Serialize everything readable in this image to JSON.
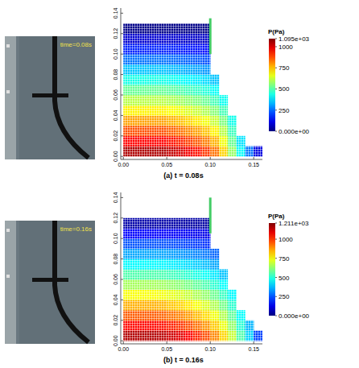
{
  "chart_data": [
    {
      "type": "heatmap",
      "title": "(a) t = 0.08s",
      "annotation": "time=0.08s",
      "xlim": [
        -0.003,
        0.16
      ],
      "ylim": [
        -0.003,
        0.145
      ],
      "xticks": [
        {
          "value": 0,
          "label": "0.00"
        },
        0.05,
        {
          "value": 0.1,
          "label": "0.10"
        },
        0.15
      ],
      "yticks": [
        {
          "value": 0,
          "label": "0.00"
        },
        0.02,
        0.04,
        0.06,
        0.08,
        {
          "value": 0.1,
          "label": "0.10"
        },
        0.12,
        0.14
      ],
      "colorbar": {
        "title": "P(Pa)",
        "range": [
          0,
          1095
        ],
        "ticks": [
          {
            "value": 1095,
            "label": "1.095e+03"
          },
          1000,
          750,
          500,
          250,
          {
            "value": 0,
            "label": "0.000e+00"
          }
        ]
      },
      "gate": {
        "x": 0.1,
        "bottom": 0.1,
        "top": 0.135
      },
      "x": [
        0.005,
        0.015,
        0.025,
        0.035,
        0.045,
        0.055,
        0.065,
        0.075,
        0.085,
        0.095,
        0.105,
        0.115,
        0.125,
        0.135,
        0.145,
        0.155
      ],
      "y": [
        0.005,
        0.015,
        0.025,
        0.035,
        0.045,
        0.055,
        0.065,
        0.075,
        0.085,
        0.095,
        0.105,
        0.115,
        0.125
      ],
      "cells": [
        [
          1044,
          1044,
          1044,
          1044,
          1044,
          1023,
          1002,
          971,
          940,
          898,
          835,
          731,
          574,
          418,
          261,
          104
        ],
        [
          957,
          957,
          957,
          957,
          957,
          938,
          919,
          890,
          861,
          823,
          766,
          670,
          526,
          383,
          null,
          null
        ],
        [
          870,
          870,
          870,
          870,
          870,
          853,
          835,
          809,
          783,
          748,
          696,
          609,
          479,
          null,
          null,
          null
        ],
        [
          783,
          783,
          783,
          783,
          783,
          767,
          752,
          728,
          705,
          673,
          626,
          548,
          431,
          null,
          null,
          null
        ],
        [
          696,
          696,
          696,
          696,
          696,
          682,
          668,
          647,
          626,
          599,
          557,
          487,
          null,
          null,
          null,
          null
        ],
        [
          609,
          609,
          609,
          609,
          609,
          597,
          585,
          566,
          548,
          524,
          487,
          426,
          null,
          null,
          null,
          null
        ],
        [
          522,
          522,
          522,
          522,
          522,
          512,
          501,
          485,
          470,
          449,
          418,
          null,
          null,
          null,
          null,
          null
        ],
        [
          435,
          435,
          435,
          435,
          435,
          426,
          418,
          405,
          392,
          374,
          348,
          null,
          null,
          null,
          null,
          null
        ],
        [
          348,
          348,
          348,
          348,
          348,
          341,
          334,
          324,
          313,
          299,
          null,
          null,
          null,
          null,
          null,
          null
        ],
        [
          261,
          261,
          261,
          261,
          261,
          256,
          251,
          243,
          235,
          224,
          null,
          null,
          null,
          null,
          null,
          null
        ],
        [
          174,
          174,
          174,
          174,
          174,
          171,
          167,
          162,
          157,
          150,
          null,
          null,
          null,
          null,
          null,
          null
        ],
        [
          87,
          87,
          87,
          87,
          87,
          85,
          84,
          81,
          78,
          75,
          null,
          null,
          null,
          null,
          null,
          null
        ],
        [
          10,
          10,
          10,
          10,
          10,
          10,
          10,
          10,
          10,
          10,
          null,
          null,
          null,
          null,
          null,
          null
        ]
      ]
    },
    {
      "type": "heatmap",
      "title": "(b) t = 0.16s",
      "annotation": "time=0.16s",
      "xlim": [
        -0.003,
        0.16
      ],
      "ylim": [
        -0.003,
        0.145
      ],
      "xticks": [
        {
          "value": 0,
          "label": "0.00"
        },
        0.05,
        {
          "value": 0.1,
          "label": "0.10"
        },
        0.15
      ],
      "yticks": [
        {
          "value": 0,
          "label": "0.00"
        },
        0.02,
        0.04,
        0.06,
        0.08,
        {
          "value": 0.1,
          "label": "0.10"
        },
        0.12,
        0.14
      ],
      "colorbar": {
        "title": "P(Pa)",
        "range": [
          0,
          1211
        ],
        "ticks": [
          {
            "value": 1211,
            "label": "1.211e+03"
          },
          1000,
          750,
          500,
          250,
          {
            "value": 0,
            "label": "0.000e+00"
          }
        ]
      },
      "gate": {
        "x": 0.1,
        "bottom": 0.105,
        "top": 0.14
      },
      "x": [
        0.005,
        0.015,
        0.025,
        0.035,
        0.045,
        0.055,
        0.065,
        0.075,
        0.085,
        0.095,
        0.105,
        0.115,
        0.125,
        0.135,
        0.145,
        0.155
      ],
      "y": [
        0.005,
        0.015,
        0.025,
        0.035,
        0.045,
        0.055,
        0.065,
        0.075,
        0.085,
        0.095,
        0.105,
        0.115,
        0.125
      ],
      "cells": [
        [
          1150,
          1150,
          1150,
          1150,
          1139,
          1116,
          1093,
          1058,
          1012,
          966,
          897,
          805,
          690,
          552,
          403,
          230
        ],
        [
          1050,
          1050,
          1050,
          1050,
          1040,
          1019,
          998,
          966,
          924,
          882,
          819,
          735,
          630,
          504,
          368,
          null
        ],
        [
          950,
          950,
          950,
          950,
          941,
          922,
          903,
          874,
          836,
          798,
          741,
          665,
          570,
          456,
          null,
          null
        ],
        [
          850,
          850,
          850,
          850,
          842,
          825,
          808,
          782,
          748,
          714,
          663,
          595,
          510,
          null,
          null,
          null
        ],
        [
          750,
          750,
          750,
          750,
          743,
          728,
          713,
          690,
          660,
          630,
          585,
          525,
          450,
          null,
          null,
          null
        ],
        [
          650,
          650,
          650,
          650,
          644,
          631,
          618,
          598,
          572,
          546,
          507,
          455,
          null,
          null,
          null,
          null
        ],
        [
          550,
          550,
          550,
          550,
          545,
          534,
          523,
          506,
          484,
          462,
          429,
          385,
          null,
          null,
          null,
          null
        ],
        [
          450,
          450,
          450,
          450,
          446,
          437,
          428,
          414,
          396,
          378,
          351,
          null,
          null,
          null,
          null,
          null
        ],
        [
          350,
          350,
          350,
          350,
          347,
          340,
          333,
          322,
          308,
          294,
          273,
          null,
          null,
          null,
          null,
          null
        ],
        [
          250,
          250,
          250,
          250,
          248,
          243,
          238,
          230,
          220,
          210,
          null,
          null,
          null,
          null,
          null,
          null
        ],
        [
          150,
          150,
          150,
          150,
          149,
          146,
          143,
          138,
          132,
          126,
          null,
          null,
          null,
          null,
          null,
          null
        ],
        [
          50,
          50,
          50,
          50,
          50,
          49,
          48,
          46,
          44,
          42,
          null,
          null,
          null,
          null,
          null,
          null
        ],
        [
          null,
          null,
          null,
          null,
          null,
          null,
          null,
          null,
          null,
          null,
          null,
          null,
          null,
          null,
          null,
          null
        ]
      ]
    }
  ]
}
